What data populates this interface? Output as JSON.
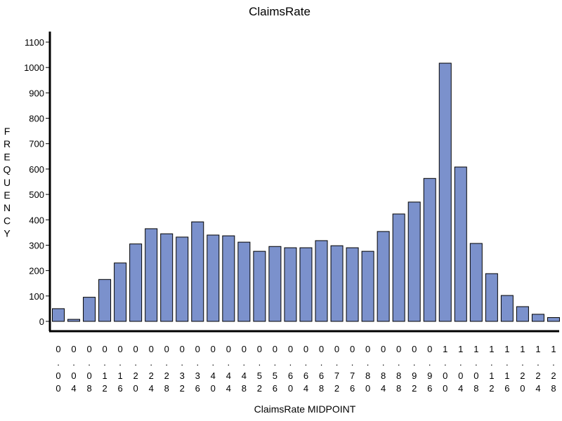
{
  "chart_data": {
    "type": "bar",
    "title": "ClaimsRate",
    "xlabel": "ClaimsRate MIDPOINT",
    "ylabel": "FREQUENCY",
    "ylabel_chars": [
      "F",
      "R",
      "E",
      "Q",
      "U",
      "E",
      "N",
      "C",
      "Y"
    ],
    "ylim": [
      0,
      1100
    ],
    "yticks": [
      0,
      100,
      200,
      300,
      400,
      500,
      600,
      700,
      800,
      900,
      1000,
      1100
    ],
    "categories": [
      "0.00",
      "0.04",
      "0.08",
      "0.12",
      "0.16",
      "0.20",
      "0.24",
      "0.28",
      "0.32",
      "0.36",
      "0.40",
      "0.44",
      "0.48",
      "0.52",
      "0.56",
      "0.60",
      "0.64",
      "0.68",
      "0.72",
      "0.76",
      "0.80",
      "0.84",
      "0.88",
      "0.92",
      "0.96",
      "1.00",
      "1.04",
      "1.08",
      "1.12",
      "1.16",
      "1.20",
      "1.24",
      "1.28"
    ],
    "values": [
      50,
      8,
      95,
      165,
      230,
      305,
      365,
      345,
      332,
      392,
      340,
      337,
      312,
      276,
      295,
      290,
      290,
      318,
      298,
      290,
      276,
      354,
      423,
      470,
      563,
      1017,
      608,
      307,
      188,
      102,
      58,
      28,
      15
    ],
    "colors": {
      "bar": "#7b91cc",
      "outline": "#000000"
    }
  }
}
